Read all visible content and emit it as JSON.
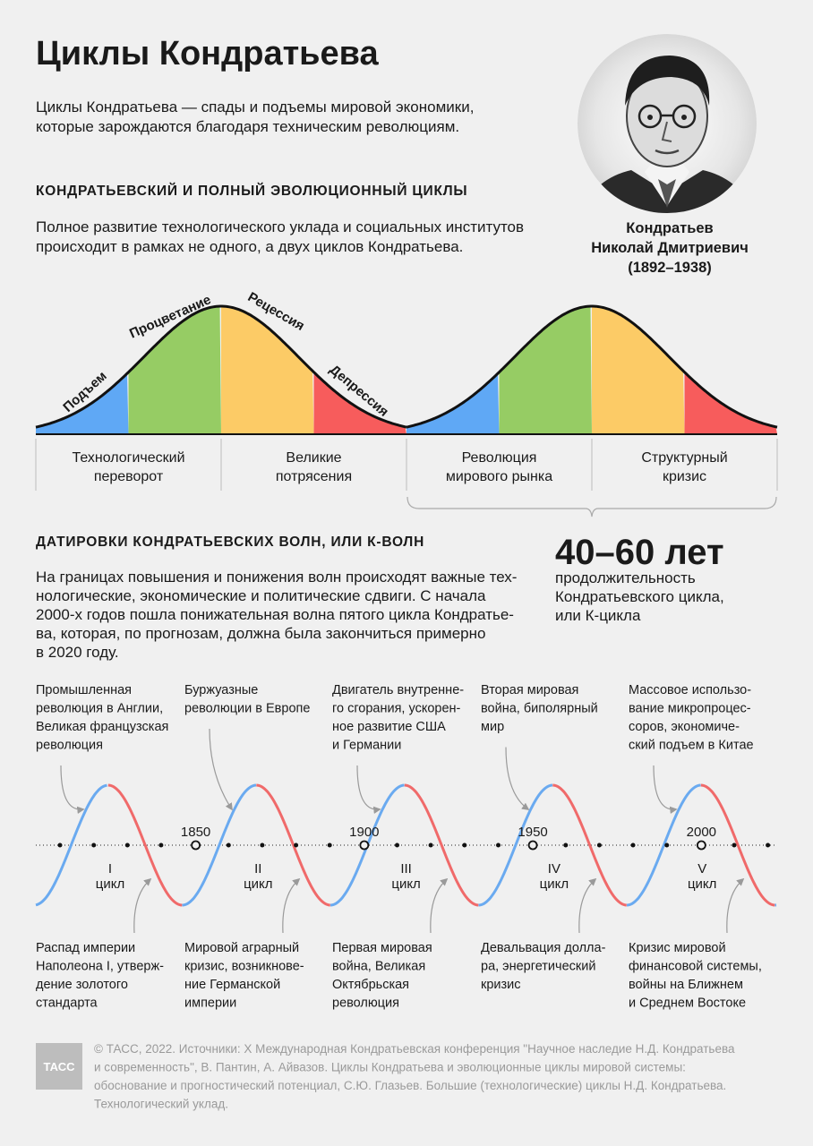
{
  "header": {
    "title": "Циклы Кондратьева",
    "intro": [
      "Циклы Кондратьева — спады и подъемы мировой экономики,",
      "которые зарождаются благодаря техническим революциям."
    ]
  },
  "portrait": {
    "caption": [
      "Кондратьев",
      "Николай Дмитриевич",
      "(1892–1938)"
    ]
  },
  "cycle_section": {
    "heading": "КОНДРАТЬЕВСКИЙ И ПОЛНЫЙ ЭВОЛЮЦИОННЫЙ ЦИКЛЫ",
    "text": [
      "Полное развитие технологического уклада и социальных институтов",
      "происходит в рамках не одного, а двух циклов Кондратьева."
    ],
    "phases": [
      "Подъем",
      "Процветание",
      "Рецессия",
      "Депрессия"
    ],
    "stages": [
      [
        "Технологический",
        "переворот"
      ],
      [
        "Великие",
        "потрясения"
      ],
      [
        "Революция",
        "мирового рынка"
      ],
      [
        "Структурный",
        "кризис"
      ]
    ]
  },
  "waves_section": {
    "heading": "ДАТИРОВКИ КОНДРАТЬЕВСКИХ ВОЛН, ИЛИ К-ВОЛН",
    "text": [
      "На границах повышения и понижения волн происходят важные тех-",
      "нологические, экономические и политические сдвиги. С начала",
      "2000-х годов пошла понижательная волна пятого цикла Кондратье-",
      "ва, которая, по прогнозам, должна была закончиться примерно",
      "в 2020 году."
    ],
    "stat": {
      "value": "40–60 лет",
      "description": [
        "продолжительность",
        "Кондратьевского цикла,",
        "или К-цикла"
      ]
    }
  },
  "timeline": {
    "years": [
      "1850",
      "1900",
      "1950",
      "2000"
    ],
    "cycles": [
      "I",
      "II",
      "III",
      "IV",
      "V"
    ],
    "cycle_word": "цикл",
    "events_top": [
      [
        "Промышленная",
        "революция в Англии,",
        "Великая французская",
        "революция"
      ],
      [
        "Буржуазные",
        "революции в Европе"
      ],
      [
        "Двигатель внутренне-",
        "го сгорания, ускорен-",
        "ное развитие США",
        "и Германии"
      ],
      [
        "Вторая мировая",
        "война, биполярный",
        "мир"
      ],
      [
        "Массовое использо-",
        "вание микропроцес-",
        "соров, экономиче-",
        "ский подъем в Китае"
      ]
    ],
    "events_bottom": [
      [
        "Распад империи",
        "Наполеона I, утверж-",
        "дение золотого",
        "стандарта"
      ],
      [
        "Мировой аграрный",
        "кризис, возникнове-",
        "ние Германской",
        "империи"
      ],
      [
        "Первая мировая",
        "война, Великая",
        "Октябрьская",
        "революция"
      ],
      [
        "Девальвация долла-",
        "ра, энергетический",
        "кризис"
      ],
      [
        "Кризис мировой",
        "финансовой системы,",
        "войны на Ближнем",
        "и Среднем Востоке"
      ]
    ]
  },
  "footer": {
    "logo": "ТАСС",
    "source": [
      "© ТАСС, 2022. Источники: X Международная Кондратьевская конференция \"Научное наследие Н.Д. Кондратьева",
      "и современность\", В. Пантин, А. Айвазов. Циклы Кондратьева и эволюционные циклы мировой системы:",
      "обоснование и прогностический потенциал, С.Ю. Глазьев. Большие (технологические) циклы Н.Д. Кондратьева.",
      "Технологический уклад."
    ]
  }
}
